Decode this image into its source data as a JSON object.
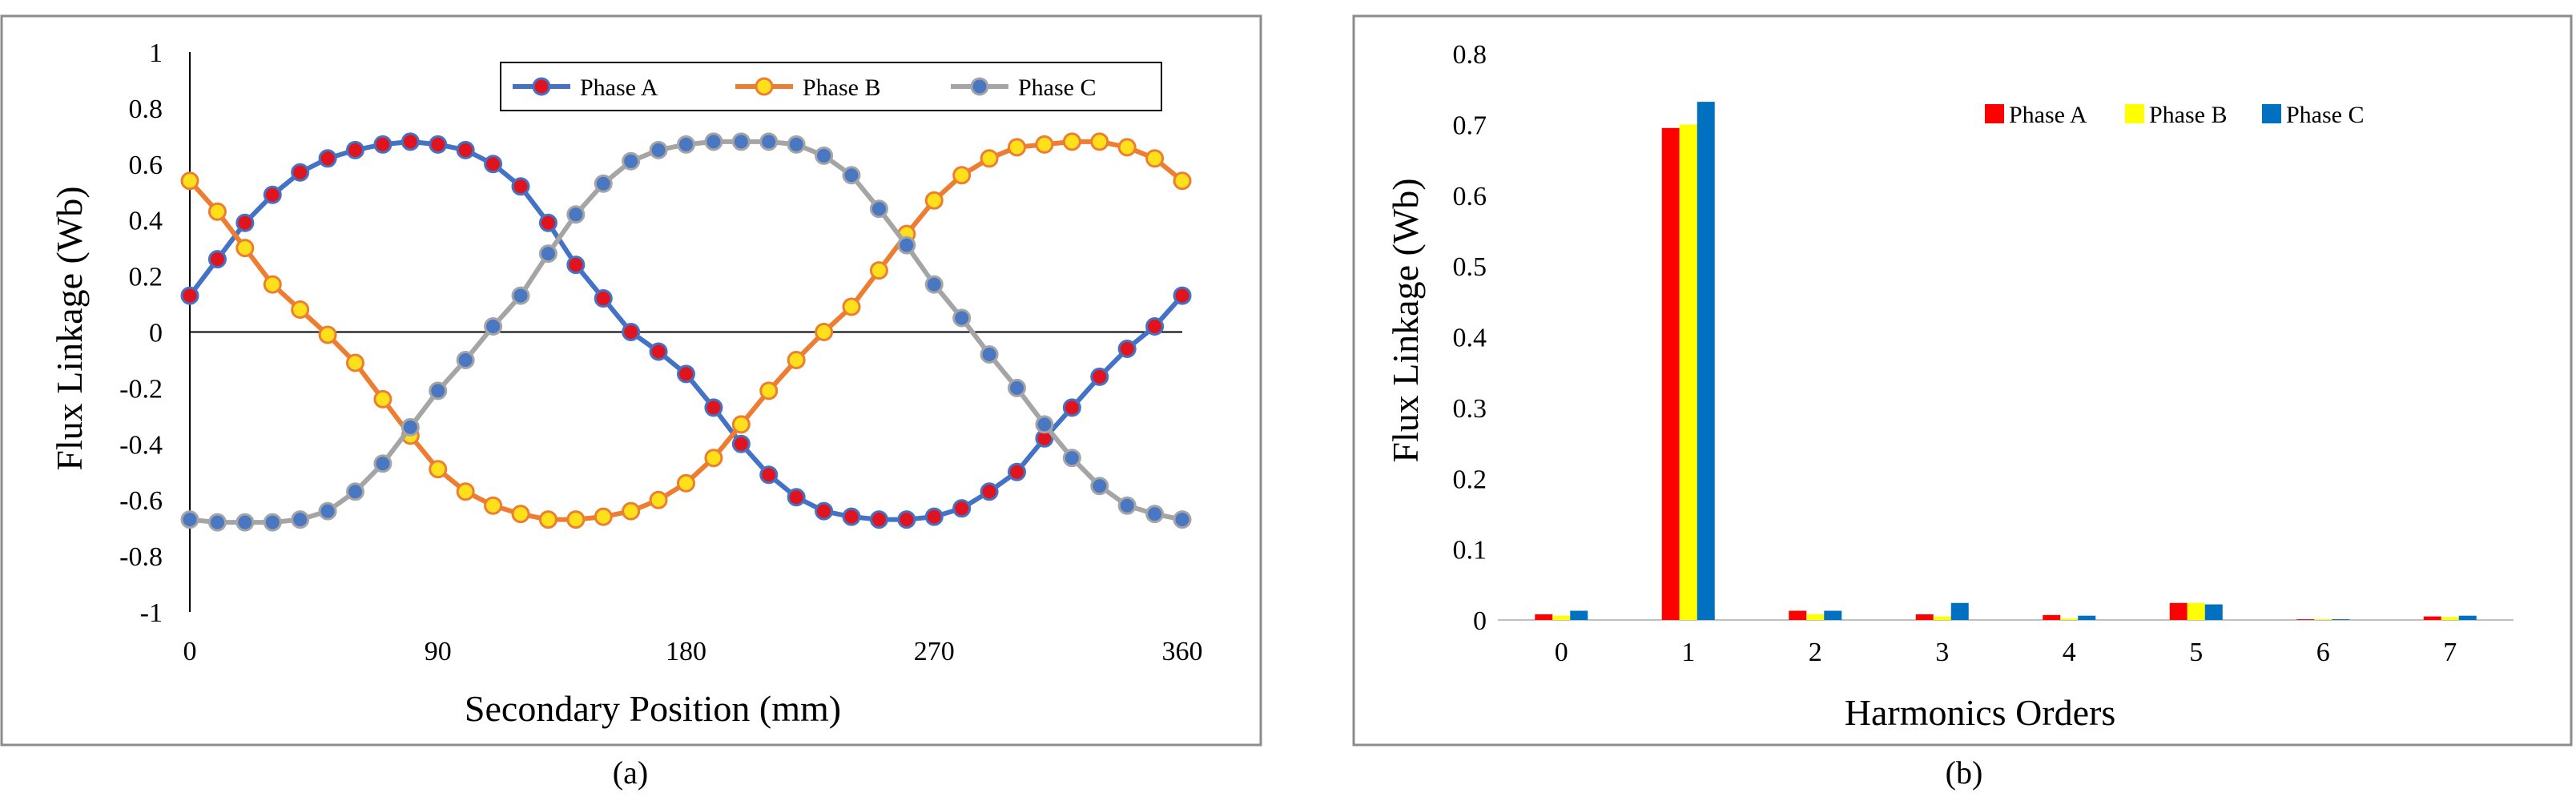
{
  "chart_data": [
    {
      "type": "line",
      "panel_label": "(a)",
      "title": "",
      "xlabel": "Secondary Position (mm)",
      "ylabel": "Flux Linkage (Wb)",
      "xlim": [
        0,
        360
      ],
      "ylim": [
        -1,
        1
      ],
      "xticks": [
        "0",
        "90",
        "180",
        "270",
        "360"
      ],
      "yticks": [
        "1",
        "0.8",
        "0.6",
        "0.4",
        "0.2",
        "0",
        "-0.2",
        "-0.4",
        "-0.6",
        "-0.8",
        "-1"
      ],
      "legend_position": "top-right",
      "x": [
        0,
        10,
        20,
        30,
        40,
        50,
        60,
        70,
        80,
        90,
        100,
        110,
        120,
        130,
        140,
        150,
        160,
        170,
        180,
        190,
        200,
        210,
        220,
        230,
        240,
        250,
        260,
        270,
        280,
        290,
        300,
        310,
        320,
        330,
        340,
        350,
        360
      ],
      "series": [
        {
          "name": "Phase A",
          "line_color": "#4472c4",
          "marker_color": "#e0141e",
          "values": [
            0.13,
            0.26,
            0.39,
            0.49,
            0.57,
            0.62,
            0.65,
            0.67,
            0.68,
            0.67,
            0.65,
            0.6,
            0.52,
            0.39,
            0.24,
            0.12,
            0.0,
            -0.07,
            -0.15,
            -0.27,
            -0.4,
            -0.51,
            -0.59,
            -0.64,
            -0.66,
            -0.67,
            -0.67,
            -0.66,
            -0.63,
            -0.57,
            -0.5,
            -0.38,
            -0.27,
            -0.16,
            -0.06,
            0.02,
            0.13
          ]
        },
        {
          "name": "Phase B",
          "line_color": "#ed7d31",
          "marker_color": "#ffe01a",
          "values": [
            0.54,
            0.43,
            0.3,
            0.17,
            0.08,
            -0.01,
            -0.11,
            -0.24,
            -0.37,
            -0.49,
            -0.57,
            -0.62,
            -0.65,
            -0.67,
            -0.67,
            -0.66,
            -0.64,
            -0.6,
            -0.54,
            -0.45,
            -0.33,
            -0.21,
            -0.1,
            0.0,
            0.09,
            0.22,
            0.35,
            0.47,
            0.56,
            0.62,
            0.66,
            0.67,
            0.68,
            0.68,
            0.66,
            0.62,
            0.54
          ]
        },
        {
          "name": "Phase C",
          "line_color": "#a5a5a5",
          "marker_color": "#4a77c2",
          "values": [
            -0.67,
            -0.68,
            -0.68,
            -0.68,
            -0.67,
            -0.64,
            -0.57,
            -0.47,
            -0.34,
            -0.21,
            -0.1,
            0.02,
            0.13,
            0.28,
            0.42,
            0.53,
            0.61,
            0.65,
            0.67,
            0.68,
            0.68,
            0.68,
            0.67,
            0.63,
            0.56,
            0.44,
            0.31,
            0.17,
            0.05,
            -0.08,
            -0.2,
            -0.33,
            -0.45,
            -0.55,
            -0.62,
            -0.65,
            -0.67
          ]
        }
      ]
    },
    {
      "type": "bar",
      "panel_label": "(b)",
      "title": "",
      "xlabel": "Harmonics Orders",
      "ylabel": "Flux Linkage (Wb)",
      "ylim": [
        0,
        0.8
      ],
      "yticks": [
        "0.8",
        "0.7",
        "0.6",
        "0.5",
        "0.4",
        "0.3",
        "0.2",
        "0.1",
        "0"
      ],
      "legend_position": "top-right",
      "categories": [
        "0",
        "1",
        "2",
        "3",
        "4",
        "5",
        "6",
        "7"
      ],
      "series": [
        {
          "name": "Phase A",
          "color": "#ff0000",
          "values": [
            0.008,
            0.695,
            0.013,
            0.008,
            0.007,
            0.024,
            0.001,
            0.005
          ]
        },
        {
          "name": "Phase B",
          "color": "#ffff00",
          "values": [
            0.006,
            0.7,
            0.008,
            0.005,
            0.002,
            0.024,
            0.001,
            0.004
          ]
        },
        {
          "name": "Phase C",
          "color": "#0070c0",
          "values": [
            0.013,
            0.732,
            0.013,
            0.024,
            0.006,
            0.022,
            0.001,
            0.006
          ]
        }
      ]
    }
  ]
}
